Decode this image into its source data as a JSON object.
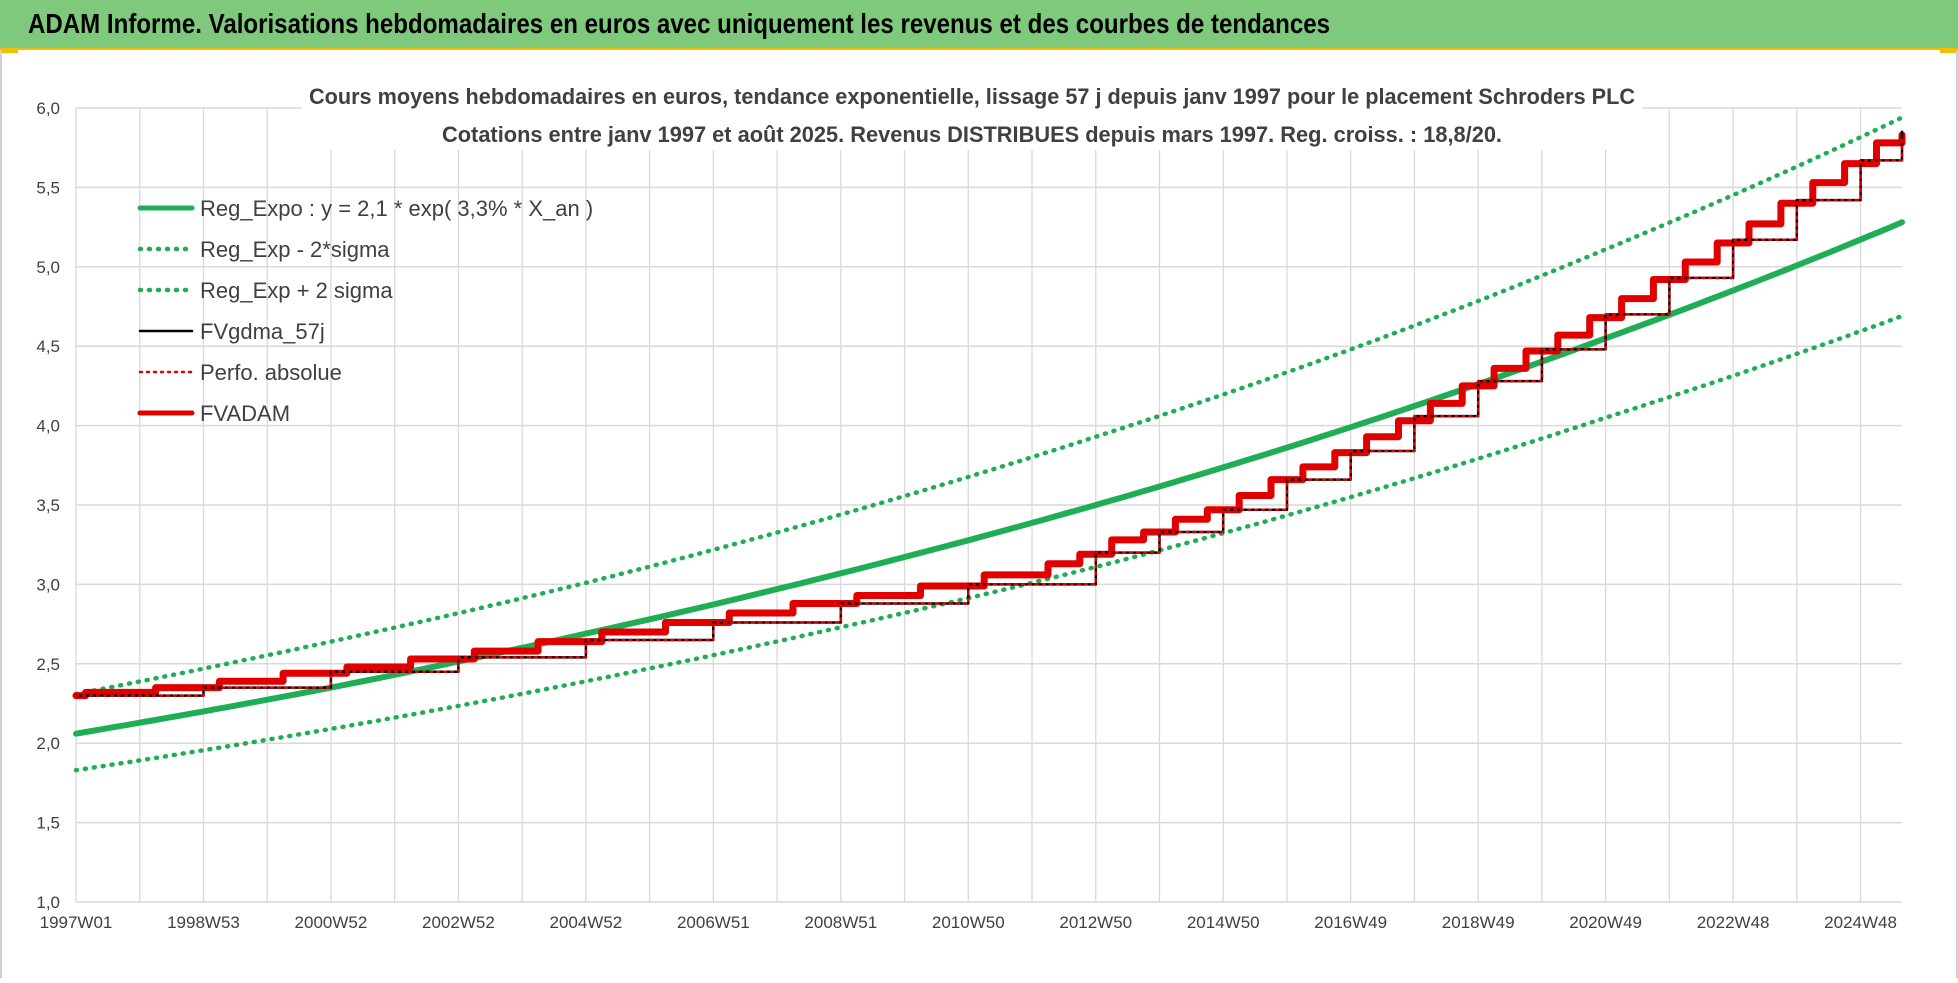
{
  "header": {
    "title": "ADAM Informe. Valorisations hebdomadaires en euros avec uniquement les revenus et des courbes de tendances"
  },
  "colors": {
    "banner": "#7ec97c",
    "reg_expo": "#1fae55",
    "sigma": "#1fae55",
    "fvgdma": "#000000",
    "perfo": "#e00000",
    "fvadam": "#e00000",
    "grid": "#d9d9d9"
  },
  "chart_data": {
    "type": "line",
    "title": "Cours moyens hebdomadaires en euros, tendance exponentielle, lissage 57 j depuis janv 1997 pour le placement Schroders PLC",
    "subtitle": "Cotations entre janv 1997 et août 2025.  Revenus DISTRIBUES depuis mars 1997. Reg. croiss. : 18,8/20.",
    "xlabel": "",
    "ylabel": "",
    "ylim": [
      1.0,
      6.0
    ],
    "xlim": [
      1997.0,
      2025.65
    ],
    "y_ticks": [
      "1,0",
      "1,5",
      "2,0",
      "2,5",
      "3,0",
      "3,5",
      "4,0",
      "4,5",
      "5,0",
      "5,5",
      "6,0"
    ],
    "y_tick_values": [
      1.0,
      1.5,
      2.0,
      2.5,
      3.0,
      3.5,
      4.0,
      4.5,
      5.0,
      5.5,
      6.0
    ],
    "x_ticks": [
      "1997W01",
      "1998W53",
      "2000W52",
      "2002W52",
      "2004W52",
      "2006W51",
      "2008W51",
      "2010W50",
      "2012W50",
      "2014W50",
      "2016W49",
      "2018W49",
      "2020W49",
      "2022W48",
      "2024W48"
    ],
    "x_tick_values": [
      1997.0,
      1999.0,
      2001.0,
      2003.0,
      2005.0,
      2007.0,
      2009.0,
      2011.0,
      2013.0,
      2015.0,
      2017.0,
      2019.0,
      2021.0,
      2023.0,
      2025.0
    ],
    "grid": true,
    "legend_position": "top-left",
    "series": [
      {
        "name": "Reg_Expo : y = 2,1 * exp( 3,3% *  X_an )",
        "style": "solid-thick",
        "x": [
          1997.0,
          2001.0,
          2005.0,
          2009.0,
          2013.0,
          2017.0,
          2021.0,
          2025.65
        ],
        "values": [
          2.06,
          2.35,
          2.69,
          3.07,
          3.5,
          3.99,
          4.55,
          5.28
        ]
      },
      {
        "name": "Reg_Exp - 2*sigma",
        "style": "dotted",
        "x": [
          1997.0,
          2001.0,
          2005.0,
          2009.0,
          2013.0,
          2017.0,
          2021.0,
          2025.65
        ],
        "values": [
          1.83,
          2.09,
          2.39,
          2.73,
          3.11,
          3.55,
          4.05,
          4.69
        ]
      },
      {
        "name": "Reg_Exp + 2 sigma",
        "style": "dotted",
        "x": [
          1997.0,
          2001.0,
          2005.0,
          2009.0,
          2013.0,
          2017.0,
          2021.0,
          2025.65
        ],
        "values": [
          2.31,
          2.64,
          3.01,
          3.44,
          3.93,
          4.48,
          5.11,
          5.94
        ]
      },
      {
        "name": "FVgdma_57j",
        "style": "solid-thin",
        "x": [
          1997.0,
          1999.0,
          2001.0,
          2003.0,
          2005.0,
          2007.0,
          2009.0,
          2011.0,
          2013.0,
          2014.0,
          2015.0,
          2016.0,
          2017.0,
          2018.0,
          2019.0,
          2020.0,
          2021.0,
          2022.0,
          2023.0,
          2024.0,
          2025.0,
          2025.65
        ],
        "values": [
          2.3,
          2.35,
          2.45,
          2.54,
          2.65,
          2.76,
          2.88,
          3.0,
          3.2,
          3.33,
          3.47,
          3.66,
          3.84,
          4.06,
          4.28,
          4.48,
          4.7,
          4.93,
          5.17,
          5.42,
          5.67,
          5.85
        ]
      },
      {
        "name": "Perfo. absolue",
        "style": "dotted",
        "x": [
          1997.0,
          1999.0,
          2001.0,
          2003.0,
          2005.0,
          2007.0,
          2009.0,
          2011.0,
          2013.0,
          2014.0,
          2015.0,
          2016.0,
          2017.0,
          2018.0,
          2019.0,
          2020.0,
          2021.0,
          2022.0,
          2023.0,
          2024.0,
          2025.0,
          2025.65
        ],
        "values": [
          2.3,
          2.35,
          2.45,
          2.54,
          2.65,
          2.76,
          2.88,
          3.0,
          3.2,
          3.33,
          3.47,
          3.66,
          3.84,
          4.06,
          4.28,
          4.48,
          4.7,
          4.93,
          5.17,
          5.42,
          5.67,
          5.83
        ]
      },
      {
        "name": "FVADAM",
        "style": "step-thick",
        "x": [
          1997.0,
          1997.15,
          1997.25,
          1998.25,
          1999.25,
          2000.25,
          2001.25,
          2002.25,
          2003.25,
          2004.25,
          2005.25,
          2006.25,
          2007.25,
          2008.25,
          2009.25,
          2010.25,
          2011.25,
          2012.25,
          2012.75,
          2013.25,
          2013.75,
          2014.25,
          2014.75,
          2015.25,
          2015.75,
          2016.25,
          2016.75,
          2017.25,
          2017.75,
          2018.25,
          2018.75,
          2019.25,
          2019.75,
          2020.25,
          2020.75,
          2021.25,
          2021.75,
          2022.25,
          2022.75,
          2023.25,
          2023.75,
          2024.25,
          2024.75,
          2025.25,
          2025.65
        ],
        "values": [
          2.3,
          2.32,
          2.32,
          2.35,
          2.39,
          2.44,
          2.48,
          2.53,
          2.58,
          2.64,
          2.7,
          2.76,
          2.82,
          2.88,
          2.93,
          2.99,
          3.06,
          3.13,
          3.19,
          3.28,
          3.33,
          3.41,
          3.47,
          3.56,
          3.66,
          3.74,
          3.83,
          3.93,
          4.03,
          4.14,
          4.25,
          4.36,
          4.47,
          4.57,
          4.68,
          4.8,
          4.92,
          5.03,
          5.15,
          5.27,
          5.4,
          5.53,
          5.65,
          5.78,
          5.83
        ]
      }
    ]
  }
}
